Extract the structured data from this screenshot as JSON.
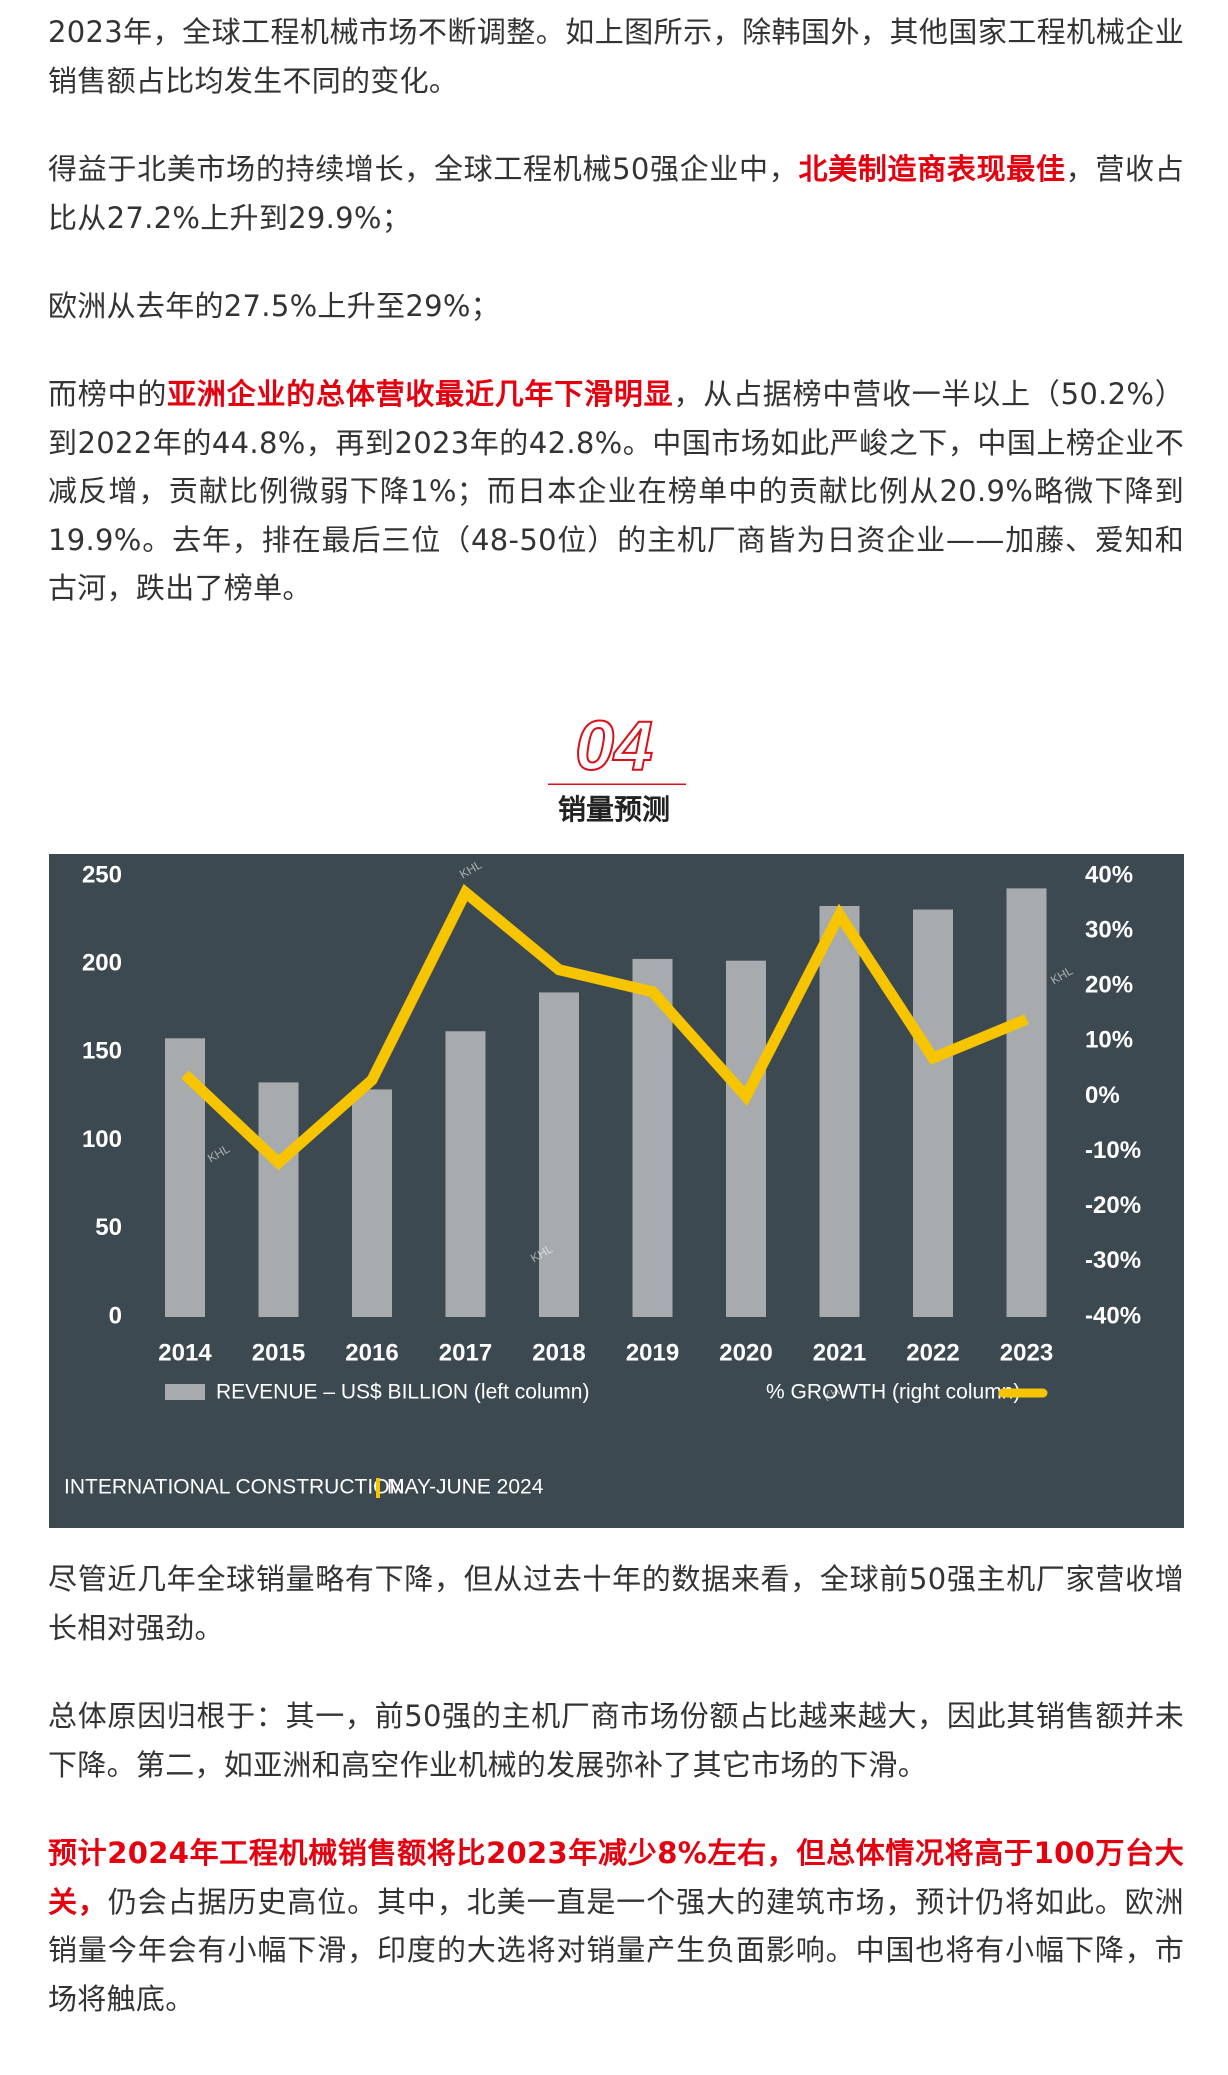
{
  "paragraphs_top": [
    {
      "runs": [
        {
          "text": "2023年，全球工程机械市场不断调整。如上图所示，除韩国外，其他国家工程机械企业销售额占比均发生不同的变化。",
          "emphasis": false
        }
      ]
    },
    {
      "runs": [
        {
          "text": "得益于北美市场的持续增长，全球工程机械50强企业中，",
          "emphasis": false
        },
        {
          "text": "北美制造商表现最佳",
          "emphasis": true
        },
        {
          "text": "，营收占比从27.2%上升到29.9%；",
          "emphasis": false
        }
      ]
    },
    {
      "runs": [
        {
          "text": "欧洲从去年的27.5%上升至29%；",
          "emphasis": false
        }
      ]
    },
    {
      "runs": [
        {
          "text": "而榜中的",
          "emphasis": false
        },
        {
          "text": "亚洲企业的总体营收最近几年下滑明显",
          "emphasis": true
        },
        {
          "text": "，从占据榜中营收一半以上（50.2%）到2022年的44.8%，再到2023年的42.8%。中国市场如此严峻之下，中国上榜企业不减反增，贡献比例微弱下降1%；而日本企业在榜单中的贡献比例从20.9%略微下降到19.9%。去年，排在最后三位（48-50位）的主机厂商皆为日资企业——加藤、爱知和古河，跌出了榜单。",
          "emphasis": false
        }
      ]
    }
  ],
  "section": {
    "number": "04",
    "title": "销量预测"
  },
  "chart_data": {
    "type": "bar_line",
    "categories": [
      "2014",
      "2015",
      "2016",
      "2017",
      "2018",
      "2019",
      "2020",
      "2021",
      "2022",
      "2023"
    ],
    "series": [
      {
        "name": "REVENUE – US$ BILLION (left column)",
        "color": "#a7abae",
        "type": "bar",
        "values": [
          158,
          133,
          129,
          162,
          184,
          203,
          202,
          233,
          231,
          243
        ]
      },
      {
        "name": "% GROWTH (right column)",
        "color": "#f6c500",
        "type": "line",
        "axis": "y2",
        "values": [
          4,
          -12,
          3,
          37,
          23,
          19,
          0,
          33,
          7,
          14
        ]
      }
    ],
    "ylim": [
      0,
      250
    ],
    "yticks": [
      0,
      50,
      100,
      150,
      200,
      250
    ],
    "y2lim": [
      -40,
      40
    ],
    "y2ticks": [
      {
        "value": -40,
        "label": "-40%"
      },
      {
        "value": -30,
        "label": "-30%"
      },
      {
        "value": -20,
        "label": "-20%"
      },
      {
        "value": -10,
        "label": "-10%"
      },
      {
        "value": 0,
        "label": "0%"
      },
      {
        "value": 10,
        "label": "10%"
      },
      {
        "value": 20,
        "label": "20%"
      },
      {
        "value": 30,
        "label": "30%"
      },
      {
        "value": 40,
        "label": "40%"
      }
    ],
    "source": [
      "INTERNATIONAL CONSTRUCTION",
      "MAY-JUNE 2024"
    ],
    "watermark": "KHL",
    "background": "#3c4950"
  },
  "paragraphs_bottom": [
    {
      "runs": [
        {
          "text": "尽管近几年全球销量略有下降，但从过去十年的数据来看，全球前50强主机厂家营收增长相对强劲。",
          "emphasis": false
        }
      ]
    },
    {
      "runs": [
        {
          "text": "总体原因归根于：其一，前50强的主机厂商市场份额占比越来越大，因此其销售额并未下降。第二，如亚洲和高空作业机械的发展弥补了其它市场的下滑。",
          "emphasis": false
        }
      ]
    },
    {
      "runs": [
        {
          "text": "预计2024年工程机械销售额将比2023年减少8%左右，但总体情况将高于100万台大关，",
          "emphasis": true
        },
        {
          "text": "仍会占据历史高位。其中，北美一直是一个强大的建筑市场，预计仍将如此。欧洲销量今年会有小幅下滑，印度的大选将对销量产生负面影响。中国也将有小幅下降，市场将触底。",
          "emphasis": false
        }
      ]
    }
  ]
}
